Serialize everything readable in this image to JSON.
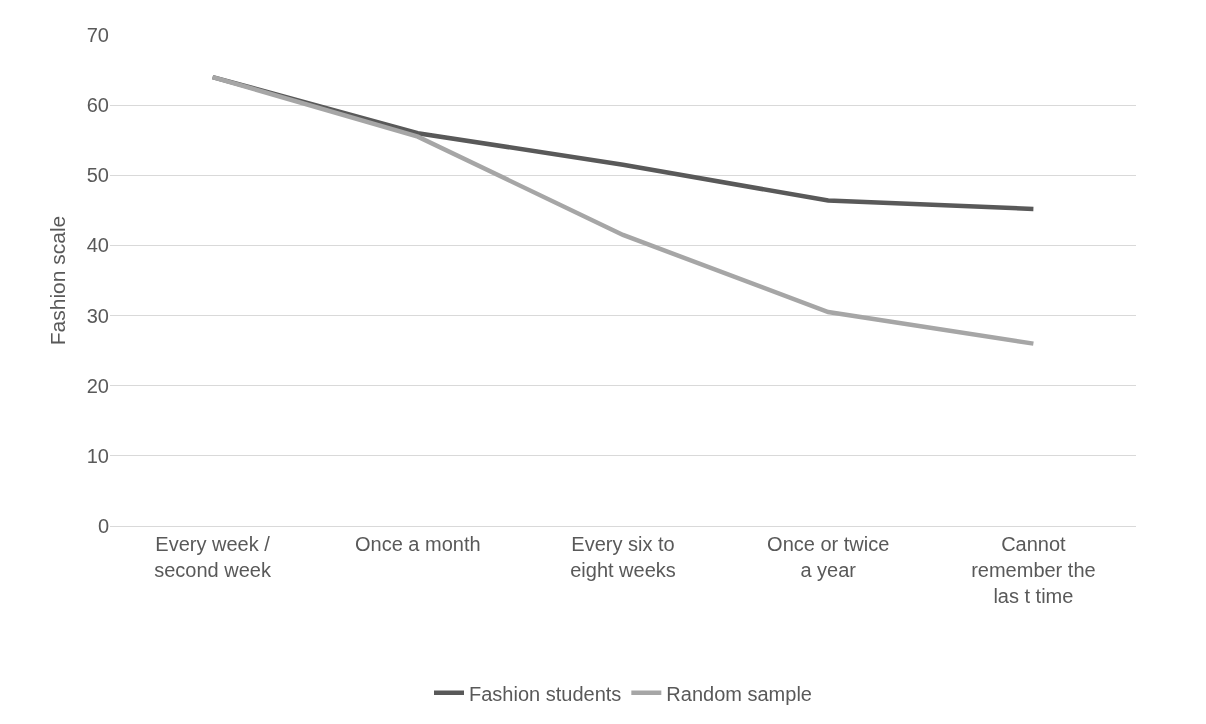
{
  "chart_data": {
    "type": "line",
    "ylabel": "Fashion scale",
    "categories": [
      "Every week / second week",
      "Once a month",
      "Every six to eight weeks",
      "Once or twice a year",
      "Cannot remember the las t time"
    ],
    "series": [
      {
        "name": "Fashion students",
        "color": "#595959",
        "values": [
          64,
          56,
          51.5,
          46.4,
          45.2
        ]
      },
      {
        "name": "Random sample",
        "color": "#a6a6a6",
        "values": [
          64,
          55.5,
          41.5,
          30.5,
          26
        ]
      }
    ],
    "ylim": [
      0,
      70
    ],
    "yticks": [
      0,
      10,
      20,
      30,
      40,
      50,
      60,
      70
    ],
    "grid": "y",
    "legend": "bottom",
    "marker": "none",
    "line_style": "solid"
  }
}
